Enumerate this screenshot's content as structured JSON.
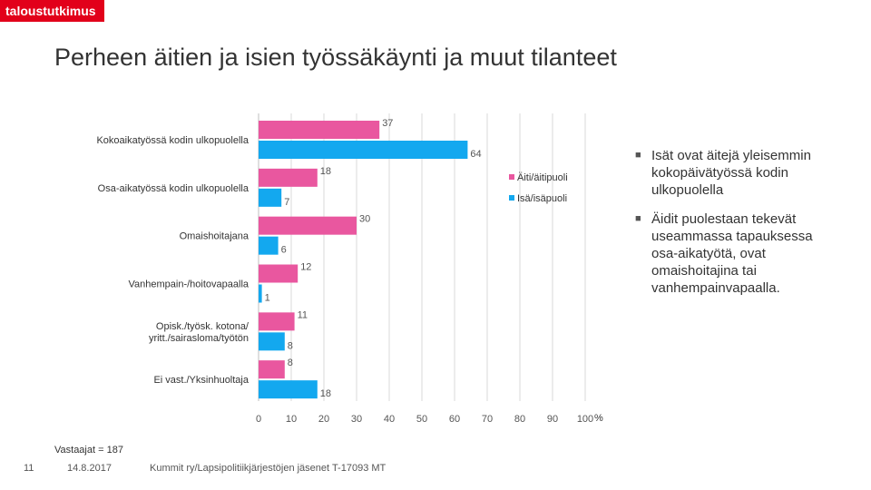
{
  "brand": {
    "logo_text": "taloustutkimus",
    "accent": "#e2001a"
  },
  "title": "Perheen äitien ja isien työssäkäynti ja muut tilanteet",
  "chart_data": {
    "type": "bar",
    "orientation": "horizontal",
    "categories": [
      [
        "Kokoaikatyössä kodin ulkopuolella"
      ],
      [
        "Osa-aikatyössä kodin ulkopuolella"
      ],
      [
        "Omaishoitajana"
      ],
      [
        "Vanhempain-/hoitovapaalla"
      ],
      [
        "Opisk./työsk. kotona/",
        "yritt./sairasloma/työtön"
      ],
      [
        "Ei vast./Yksinhuoltaja"
      ]
    ],
    "series": [
      {
        "name": "Äiti/äitipuoli",
        "color": "#e9579f",
        "values": [
          37,
          18,
          30,
          12,
          11,
          8
        ]
      },
      {
        "name": "Isä/isäpuoli",
        "color": "#13a8ef",
        "values": [
          64,
          7,
          6,
          1,
          8,
          18
        ]
      }
    ],
    "xlim": [
      0,
      100
    ],
    "xticks": [
      0,
      10,
      20,
      30,
      40,
      50,
      60,
      70,
      80,
      90,
      100
    ],
    "xunit": "%",
    "grid": true,
    "legend": "right"
  },
  "bullets": [
    "Isät ovat äitejä yleisemmin kokopäivätyössä kodin ulkopuolella",
    "Äidit puolestaan tekevät useammassa tapauksessa osa-aikatyötä, ovat omaishoitajina tai vanhempainvapaalla."
  ],
  "respondents": "Vastaajat = 187",
  "footer": {
    "page": "11",
    "date": "14.8.2017",
    "source": "Kummit ry/Lapsipolitiikjärjestöjen jäsenet T-17093 MT"
  }
}
